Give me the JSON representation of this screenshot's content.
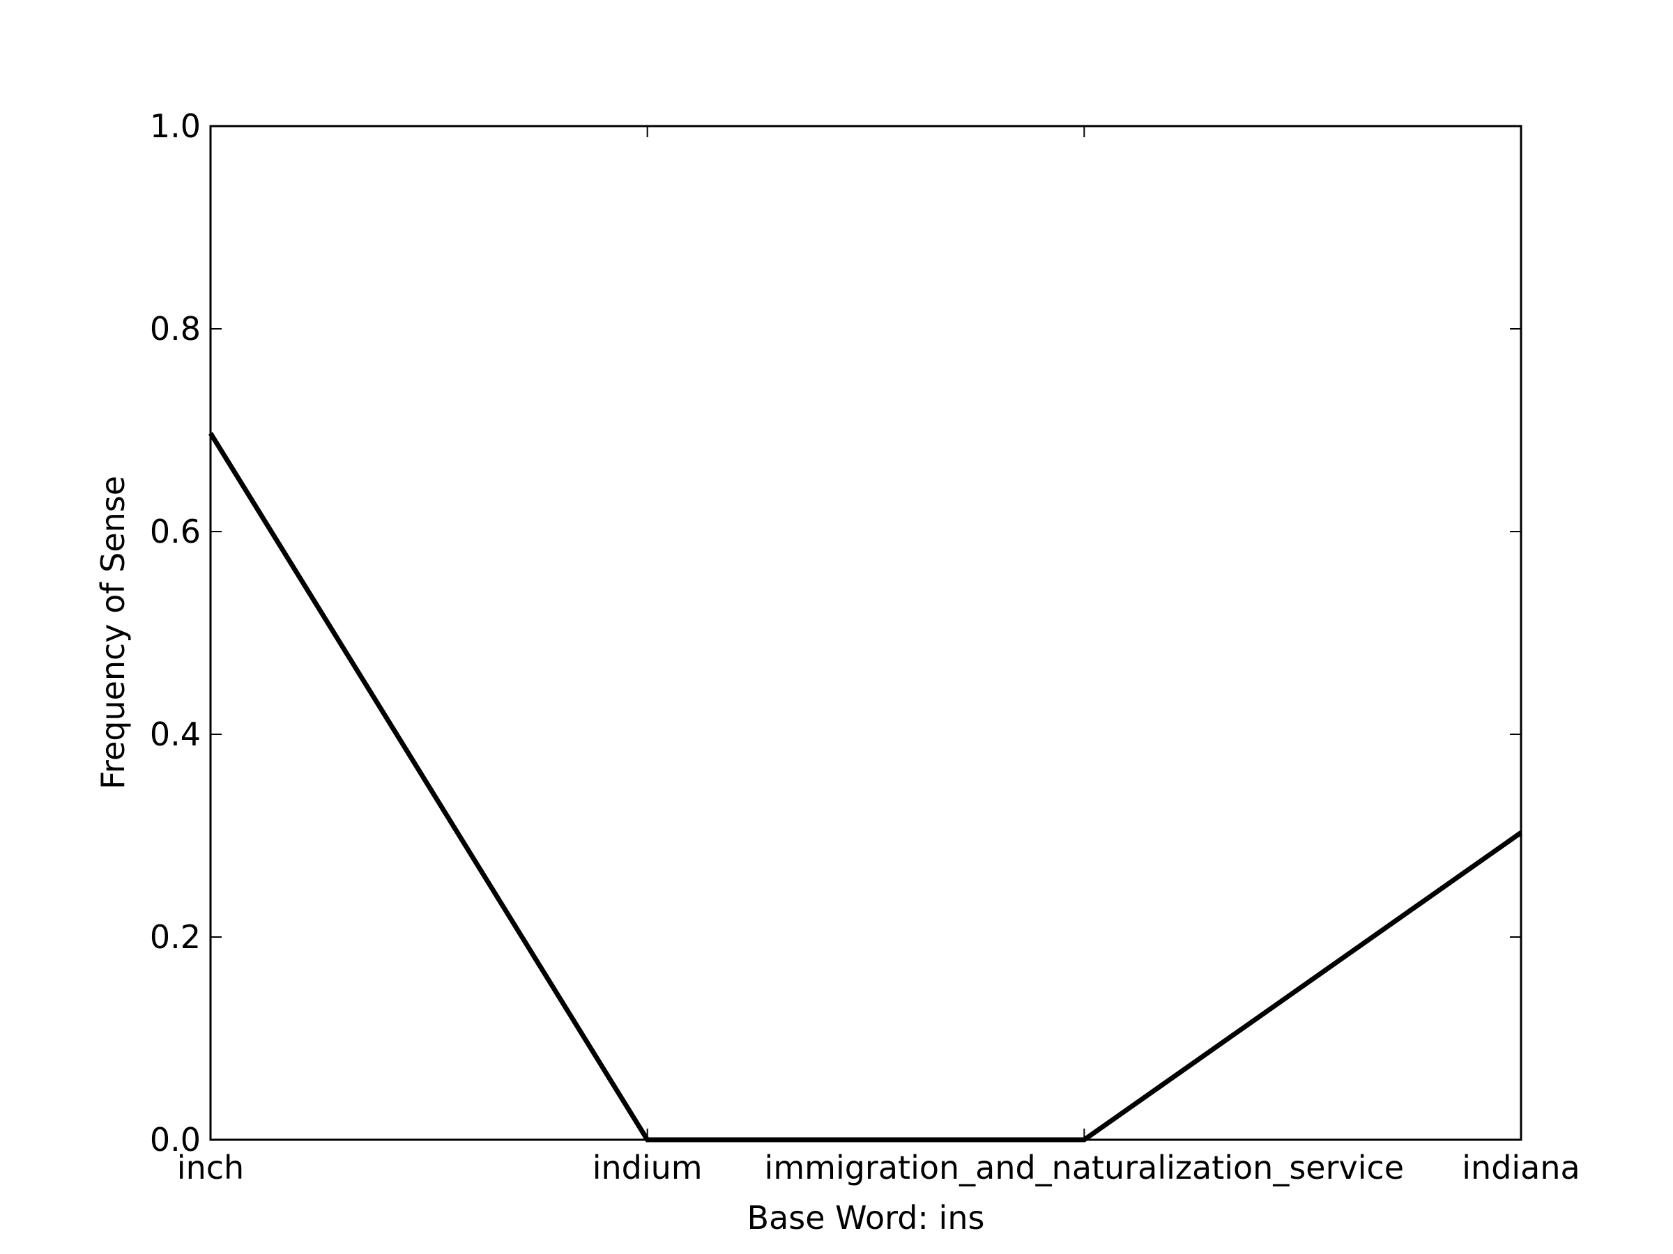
{
  "chart_data": {
    "type": "line",
    "title": "",
    "xlabel": "Base Word: ins",
    "ylabel": "Frequency of Sense",
    "categories": [
      "inch",
      "indium",
      "immigration_and_naturalization_service",
      "indiana"
    ],
    "series": [
      {
        "values": [
          0.697,
          0.0,
          0.0,
          0.303
        ],
        "color": "#000000"
      }
    ],
    "ylim": [
      0,
      1
    ],
    "yticks": [
      "0.0",
      "0.2",
      "0.4",
      "0.6",
      "0.8",
      "1.0"
    ],
    "grid": false,
    "legend": "none"
  }
}
